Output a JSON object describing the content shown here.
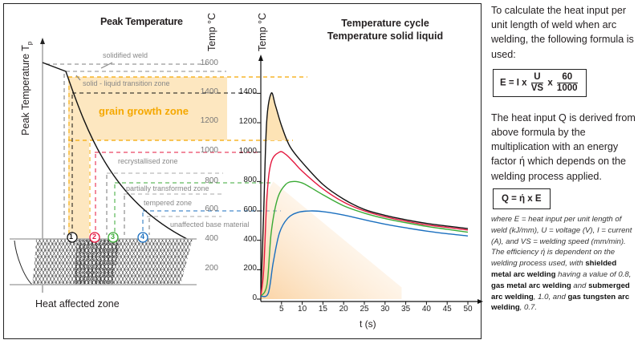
{
  "left_diagram": {
    "title": "Peak Temperature",
    "y_axis_label": "Peak Temperature T",
    "y_axis_subscript": "p",
    "temp_axis_label": "Temp °C",
    "temp_ticks": [
      "1600",
      "1400",
      "1200",
      "1000",
      "800",
      "600",
      "400",
      "200"
    ],
    "zones": {
      "solidified": "solidified weld",
      "solid_liquid": "solid - liquid transition zone",
      "grain_growth": "grain growth zone",
      "recrystallised": "recrystallised zone",
      "partially_transformed": "partially transformed zone",
      "tempered": "tempered zone",
      "unaffected": "unaffected base material"
    },
    "markers": [
      "1",
      "2",
      "3",
      "4"
    ],
    "caption": "Heat affected zone",
    "colors": {
      "grain_fill": "#fde7c0",
      "orange": "#f5a800",
      "red": "#e4173e",
      "green": "#3aaa35",
      "blue": "#1a6fbf",
      "gray": "#9d9d9d"
    }
  },
  "chart_data": {
    "type": "line",
    "title": "Temperature cycle",
    "subtitle": "Temperature solid liquid",
    "xlabel": "t (s)",
    "ylabel": "Temp °C",
    "xlim": [
      0,
      52
    ],
    "ylim": [
      0,
      1600
    ],
    "x_ticks": [
      "5",
      "10",
      "15",
      "20",
      "25",
      "30",
      "35",
      "40",
      "45",
      "50"
    ],
    "y_ticks": [
      "0",
      "200",
      "400",
      "600",
      "800",
      "1000",
      "1200",
      "1400"
    ],
    "grid": false,
    "series": [
      {
        "marker": "1",
        "color": "#111111",
        "points": [
          [
            0,
            20
          ],
          [
            0.7,
            600
          ],
          [
            1.4,
            1200
          ],
          [
            2.5,
            1400
          ],
          [
            3.5,
            1320
          ],
          [
            5,
            1180
          ],
          [
            7,
            1040
          ],
          [
            10,
            930
          ],
          [
            15,
            780
          ],
          [
            20,
            680
          ],
          [
            25,
            610
          ],
          [
            30,
            570
          ],
          [
            35,
            540
          ],
          [
            40,
            515
          ],
          [
            45,
            497
          ],
          [
            50,
            480
          ]
        ]
      },
      {
        "marker": "2",
        "color": "#e4173e",
        "points": [
          [
            0,
            20
          ],
          [
            0.7,
            200
          ],
          [
            1.5,
            700
          ],
          [
            2.5,
            930
          ],
          [
            4.5,
            1000
          ],
          [
            6,
            985
          ],
          [
            8,
            930
          ],
          [
            10,
            870
          ],
          [
            15,
            750
          ],
          [
            20,
            660
          ],
          [
            25,
            600
          ],
          [
            30,
            560
          ],
          [
            35,
            530
          ],
          [
            40,
            505
          ],
          [
            45,
            488
          ],
          [
            50,
            470
          ]
        ]
      },
      {
        "marker": "3",
        "color": "#3aaa35",
        "points": [
          [
            0,
            20
          ],
          [
            1.5,
            100
          ],
          [
            2.5,
            450
          ],
          [
            4,
            680
          ],
          [
            6,
            780
          ],
          [
            8,
            800
          ],
          [
            10,
            790
          ],
          [
            12,
            760
          ],
          [
            15,
            710
          ],
          [
            20,
            635
          ],
          [
            25,
            585
          ],
          [
            30,
            548
          ],
          [
            35,
            520
          ],
          [
            40,
            495
          ],
          [
            45,
            475
          ],
          [
            50,
            455
          ]
        ]
      },
      {
        "marker": "4",
        "color": "#1a6fbf",
        "points": [
          [
            0,
            20
          ],
          [
            1.8,
            40
          ],
          [
            3,
            250
          ],
          [
            4.5,
            450
          ],
          [
            6.5,
            550
          ],
          [
            9,
            590
          ],
          [
            12,
            600
          ],
          [
            15,
            595
          ],
          [
            20,
            572
          ],
          [
            25,
            540
          ],
          [
            30,
            510
          ],
          [
            35,
            485
          ],
          [
            40,
            463
          ],
          [
            45,
            445
          ],
          [
            50,
            430
          ]
        ]
      }
    ]
  },
  "side_text": {
    "intro": "To calculate the heat input per unit length of weld when arc welding, the following formula is used:",
    "formula_E": {
      "lhs": "E = I x",
      "num1": "U",
      "den1": "VS",
      "mid": "x",
      "num2": "60",
      "den2": "1000"
    },
    "para2": "The heat input Q is derived from above formula by the multiplication with an energy factor ή which depends on the welding process applied.",
    "formula_Q": "Q = ή x E",
    "note1": "where E = heat input per unit length of weld (kJ/mm), U = voltage (V), I = current (A), and VS = welding speed (mm/min).",
    "note2a": "The efficiency ή is dependent on the welding process used, with ",
    "note2b": "shielded metal arc welding",
    "note2c": " having a value of 0.8, ",
    "note2d": "gas metal arc welding",
    "note2e": " and ",
    "note2f": "submerged arc welding",
    "note2g": ", 1.0, and ",
    "note2h": "gas tungsten arc welding",
    "note2i": ", 0.7."
  }
}
